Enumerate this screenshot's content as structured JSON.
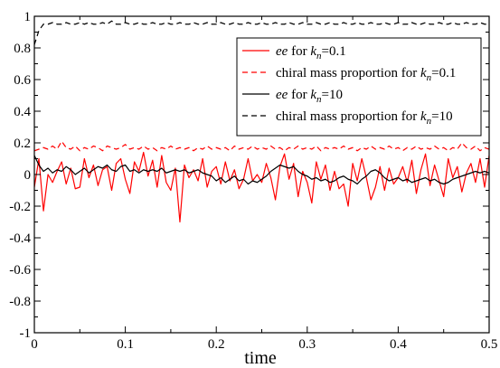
{
  "chart_data": {
    "type": "line",
    "xlabel": "time",
    "ylabel": "",
    "xlim": [
      0,
      0.5
    ],
    "ylim": [
      -1,
      1
    ],
    "xticks": [
      "0",
      "0.1",
      "0.2",
      "0.3",
      "0.4",
      "0.5"
    ],
    "yticks": [
      "-1",
      "-0.8",
      "-0.6",
      "-0.4",
      "-0.2",
      "0",
      "0.2",
      "0.4",
      "0.6",
      "0.8",
      "1"
    ],
    "grid": false,
    "legend_position": "top-right",
    "legend": [
      {
        "prefix": "",
        "italic": "ee",
        "mid": " for ",
        "k": "k",
        "sub": "n",
        "suffix": "=0.1"
      },
      {
        "prefix": "chiral mass proportion for ",
        "italic": "",
        "mid": "",
        "k": "k",
        "sub": "n",
        "suffix": "=0.1"
      },
      {
        "prefix": "",
        "italic": "ee",
        "mid": " for ",
        "k": "k",
        "sub": "n",
        "suffix": "=10"
      },
      {
        "prefix": "chiral mass proportion for ",
        "italic": "",
        "mid": "",
        "k": "k",
        "sub": "n",
        "suffix": "=10"
      }
    ],
    "series": [
      {
        "color": "#ff0000",
        "dash": "solid",
        "x": [
          0,
          0.005,
          0.01,
          0.015,
          0.02,
          0.025,
          0.03,
          0.035,
          0.04,
          0.045,
          0.05,
          0.055,
          0.06,
          0.065,
          0.07,
          0.075,
          0.08,
          0.085,
          0.09,
          0.095,
          0.1,
          0.105,
          0.11,
          0.115,
          0.12,
          0.125,
          0.13,
          0.135,
          0.14,
          0.145,
          0.15,
          0.155,
          0.16,
          0.165,
          0.17,
          0.175,
          0.18,
          0.185,
          0.19,
          0.195,
          0.2,
          0.205,
          0.21,
          0.215,
          0.22,
          0.225,
          0.23,
          0.235,
          0.24,
          0.245,
          0.25,
          0.255,
          0.26,
          0.265,
          0.27,
          0.275,
          0.28,
          0.285,
          0.29,
          0.295,
          0.3,
          0.305,
          0.31,
          0.315,
          0.32,
          0.325,
          0.33,
          0.335,
          0.34,
          0.345,
          0.35,
          0.355,
          0.36,
          0.365,
          0.37,
          0.375,
          0.38,
          0.385,
          0.39,
          0.395,
          0.4,
          0.405,
          0.41,
          0.415,
          0.42,
          0.425,
          0.43,
          0.435,
          0.44,
          0.445,
          0.45,
          0.455,
          0.46,
          0.465,
          0.47,
          0.475,
          0.48,
          0.485,
          0.49,
          0.495,
          0.5
        ],
        "y": [
          -0.08,
          0.1,
          -0.23,
          0.0,
          -0.05,
          0.02,
          0.08,
          -0.06,
          0.04,
          -0.09,
          -0.08,
          0.1,
          -0.02,
          0.06,
          -0.07,
          0.03,
          0.05,
          -0.1,
          0.07,
          0.1,
          -0.03,
          -0.12,
          0.08,
          0.02,
          0.14,
          -0.01,
          0.09,
          -0.08,
          0.12,
          -0.05,
          -0.1,
          0.04,
          -0.3,
          0.06,
          -0.02,
          0.03,
          -0.04,
          0.1,
          -0.08,
          0.02,
          0.05,
          -0.06,
          0.08,
          -0.04,
          0.03,
          -0.09,
          -0.03,
          0.1,
          -0.04,
          0.0,
          -0.05,
          0.07,
          -0.02,
          -0.16,
          0.05,
          0.13,
          -0.03,
          0.07,
          -0.14,
          0.02,
          -0.05,
          -0.18,
          0.08,
          -0.03,
          0.06,
          -0.1,
          0.02,
          -0.09,
          -0.06,
          -0.2,
          0.07,
          -0.04,
          0.1,
          -0.02,
          -0.16,
          -0.08,
          0.05,
          -0.1,
          0.04,
          -0.06,
          -0.02,
          0.05,
          -0.05,
          0.09,
          -0.12,
          0.03,
          0.13,
          -0.07,
          0.06,
          -0.04,
          -0.14,
          0.1,
          -0.02,
          0.05,
          -0.11,
          0.01,
          0.07,
          -0.05,
          0.1,
          -0.08,
          0.12
        ]
      },
      {
        "color": "#ff0000",
        "dash": "dashed",
        "x": [
          0,
          0.005,
          0.01,
          0.015,
          0.02,
          0.025,
          0.03,
          0.035,
          0.04,
          0.045,
          0.05,
          0.055,
          0.06,
          0.065,
          0.07,
          0.075,
          0.08,
          0.085,
          0.09,
          0.095,
          0.1,
          0.105,
          0.11,
          0.115,
          0.12,
          0.125,
          0.13,
          0.135,
          0.14,
          0.145,
          0.15,
          0.155,
          0.16,
          0.165,
          0.17,
          0.175,
          0.18,
          0.185,
          0.19,
          0.195,
          0.2,
          0.205,
          0.21,
          0.215,
          0.22,
          0.225,
          0.23,
          0.235,
          0.24,
          0.245,
          0.25,
          0.255,
          0.26,
          0.265,
          0.27,
          0.275,
          0.28,
          0.285,
          0.29,
          0.295,
          0.3,
          0.305,
          0.31,
          0.315,
          0.32,
          0.325,
          0.33,
          0.335,
          0.34,
          0.345,
          0.35,
          0.355,
          0.36,
          0.365,
          0.37,
          0.375,
          0.38,
          0.385,
          0.39,
          0.395,
          0.4,
          0.405,
          0.41,
          0.415,
          0.42,
          0.425,
          0.43,
          0.435,
          0.44,
          0.445,
          0.45,
          0.455,
          0.46,
          0.465,
          0.47,
          0.475,
          0.48,
          0.485,
          0.49,
          0.495,
          0.5
        ],
        "y": [
          0.15,
          0.16,
          0.17,
          0.16,
          0.18,
          0.16,
          0.21,
          0.17,
          0.16,
          0.18,
          0.15,
          0.17,
          0.16,
          0.18,
          0.17,
          0.15,
          0.18,
          0.17,
          0.16,
          0.17,
          0.19,
          0.16,
          0.17,
          0.16,
          0.18,
          0.16,
          0.17,
          0.15,
          0.17,
          0.16,
          0.18,
          0.16,
          0.17,
          0.16,
          0.17,
          0.15,
          0.17,
          0.16,
          0.18,
          0.16,
          0.17,
          0.16,
          0.17,
          0.15,
          0.18,
          0.16,
          0.17,
          0.16,
          0.18,
          0.16,
          0.17,
          0.16,
          0.18,
          0.16,
          0.17,
          0.15,
          0.17,
          0.16,
          0.18,
          0.16,
          0.17,
          0.16,
          0.18,
          0.15,
          0.17,
          0.16,
          0.17,
          0.16,
          0.18,
          0.16,
          0.17,
          0.15,
          0.17,
          0.16,
          0.18,
          0.16,
          0.17,
          0.16,
          0.18,
          0.16,
          0.17,
          0.15,
          0.17,
          0.16,
          0.18,
          0.16,
          0.17,
          0.16,
          0.18,
          0.16,
          0.17,
          0.15,
          0.17,
          0.16,
          0.2,
          0.17,
          0.16,
          0.18,
          0.15,
          0.17,
          0.16
        ]
      },
      {
        "color": "#000000",
        "dash": "solid",
        "x": [
          0,
          0.005,
          0.01,
          0.015,
          0.02,
          0.025,
          0.03,
          0.035,
          0.04,
          0.045,
          0.05,
          0.055,
          0.06,
          0.065,
          0.07,
          0.075,
          0.08,
          0.085,
          0.09,
          0.095,
          0.1,
          0.105,
          0.11,
          0.115,
          0.12,
          0.125,
          0.13,
          0.135,
          0.14,
          0.145,
          0.15,
          0.155,
          0.16,
          0.165,
          0.17,
          0.175,
          0.18,
          0.185,
          0.19,
          0.195,
          0.2,
          0.205,
          0.21,
          0.215,
          0.22,
          0.225,
          0.23,
          0.235,
          0.24,
          0.245,
          0.25,
          0.255,
          0.26,
          0.265,
          0.27,
          0.275,
          0.28,
          0.285,
          0.29,
          0.295,
          0.3,
          0.305,
          0.31,
          0.315,
          0.32,
          0.325,
          0.33,
          0.335,
          0.34,
          0.345,
          0.35,
          0.355,
          0.36,
          0.365,
          0.37,
          0.375,
          0.38,
          0.385,
          0.39,
          0.395,
          0.4,
          0.405,
          0.41,
          0.415,
          0.42,
          0.425,
          0.43,
          0.435,
          0.44,
          0.445,
          0.45,
          0.455,
          0.46,
          0.465,
          0.47,
          0.475,
          0.48,
          0.485,
          0.49,
          0.495,
          0.5
        ],
        "y": [
          0.12,
          0.06,
          0.02,
          0.04,
          0.01,
          0.03,
          0.02,
          0.05,
          0.03,
          0.0,
          0.02,
          0.04,
          0.01,
          0.03,
          0.05,
          0.04,
          0.06,
          0.03,
          0.02,
          0.05,
          0.06,
          0.02,
          0.03,
          0.01,
          0.03,
          0.02,
          0.03,
          0.02,
          0.04,
          0.01,
          0.02,
          0.03,
          0.02,
          0.03,
          0.01,
          0.02,
          0.03,
          0.01,
          0.0,
          -0.01,
          -0.04,
          -0.02,
          -0.05,
          -0.03,
          -0.01,
          -0.04,
          -0.03,
          -0.06,
          -0.04,
          -0.05,
          -0.03,
          -0.01,
          0.02,
          0.04,
          0.06,
          0.05,
          0.04,
          0.05,
          0.02,
          0.0,
          -0.01,
          -0.03,
          -0.02,
          -0.04,
          -0.03,
          -0.05,
          -0.04,
          -0.02,
          -0.01,
          -0.03,
          -0.04,
          -0.06,
          -0.03,
          -0.01,
          0.02,
          0.03,
          0.01,
          -0.02,
          -0.04,
          -0.03,
          -0.02,
          -0.04,
          -0.03,
          -0.05,
          -0.04,
          -0.03,
          -0.02,
          -0.04,
          -0.03,
          -0.05,
          -0.06,
          -0.05,
          -0.03,
          -0.02,
          -0.01,
          0.0,
          0.01,
          0.02,
          0.01,
          0.02,
          0.01
        ]
      },
      {
        "color": "#000000",
        "dash": "dashed",
        "x": [
          0,
          0.005,
          0.01,
          0.015,
          0.02,
          0.025,
          0.03,
          0.035,
          0.04,
          0.045,
          0.05,
          0.055,
          0.06,
          0.065,
          0.07,
          0.075,
          0.08,
          0.085,
          0.09,
          0.095,
          0.1,
          0.105,
          0.11,
          0.115,
          0.12,
          0.125,
          0.13,
          0.135,
          0.14,
          0.145,
          0.15,
          0.155,
          0.16,
          0.165,
          0.17,
          0.175,
          0.18,
          0.185,
          0.19,
          0.195,
          0.2,
          0.205,
          0.21,
          0.215,
          0.22,
          0.225,
          0.23,
          0.235,
          0.24,
          0.245,
          0.25,
          0.255,
          0.26,
          0.265,
          0.27,
          0.275,
          0.28,
          0.285,
          0.29,
          0.295,
          0.3,
          0.305,
          0.31,
          0.315,
          0.32,
          0.325,
          0.33,
          0.335,
          0.34,
          0.345,
          0.35,
          0.355,
          0.36,
          0.365,
          0.37,
          0.375,
          0.38,
          0.385,
          0.39,
          0.395,
          0.4,
          0.405,
          0.41,
          0.415,
          0.42,
          0.425,
          0.43,
          0.435,
          0.44,
          0.445,
          0.45,
          0.455,
          0.46,
          0.465,
          0.47,
          0.475,
          0.48,
          0.485,
          0.49,
          0.495,
          0.5
        ],
        "y": [
          0.82,
          0.91,
          0.95,
          0.95,
          0.96,
          0.95,
          0.95,
          0.96,
          0.95,
          0.95,
          0.96,
          0.95,
          0.96,
          0.95,
          0.95,
          0.96,
          0.95,
          0.97,
          0.95,
          0.95,
          0.96,
          0.95,
          0.95,
          0.96,
          0.95,
          0.95,
          0.96,
          0.95,
          0.95,
          0.96,
          0.95,
          0.95,
          0.96,
          0.95,
          0.95,
          0.96,
          0.95,
          0.95,
          0.96,
          0.95,
          0.95,
          0.96,
          0.95,
          0.95,
          0.96,
          0.95,
          0.95,
          0.96,
          0.95,
          0.95,
          0.96,
          0.95,
          0.95,
          0.96,
          0.95,
          0.95,
          0.96,
          0.95,
          0.95,
          0.96,
          0.95,
          0.95,
          0.96,
          0.95,
          0.95,
          0.96,
          0.95,
          0.95,
          0.96,
          0.95,
          0.95,
          0.96,
          0.95,
          0.95,
          0.96,
          0.95,
          0.95,
          0.96,
          0.95,
          0.95,
          0.96,
          0.95,
          0.95,
          0.96,
          0.95,
          0.95,
          0.96,
          0.95,
          0.95,
          0.96,
          0.95,
          0.95,
          0.96,
          0.95,
          0.95,
          0.96,
          0.95,
          0.95,
          0.96,
          0.95,
          0.95
        ]
      }
    ]
  }
}
